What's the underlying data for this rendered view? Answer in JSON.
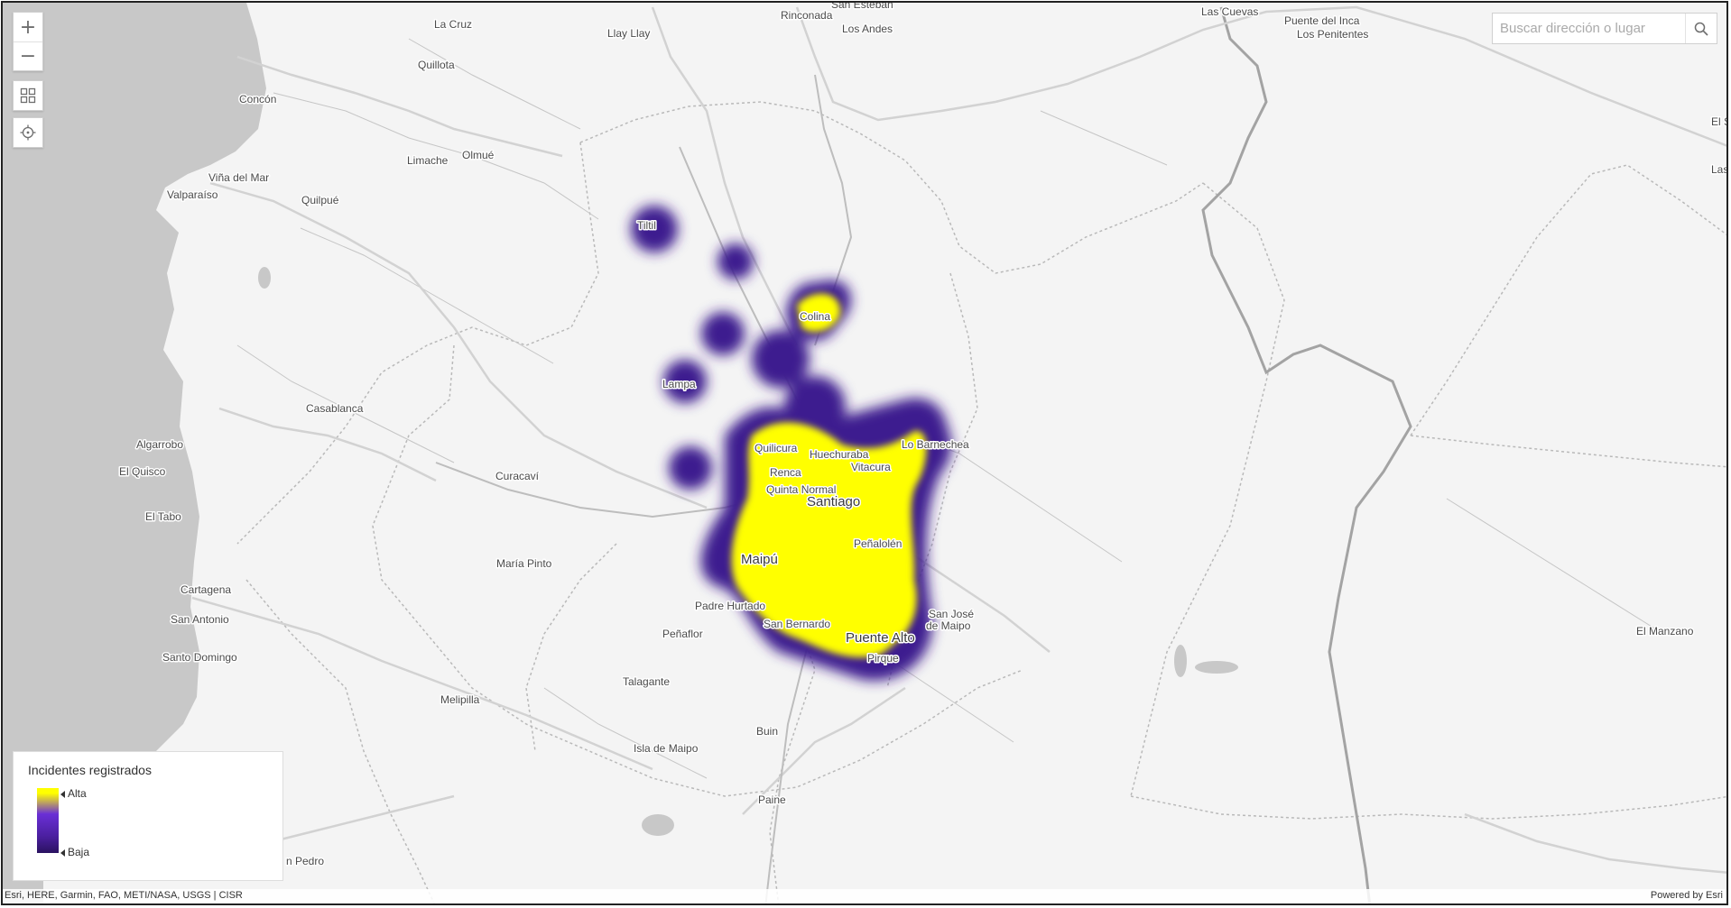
{
  "controls": {
    "zoom_in": "+",
    "zoom_out": "−"
  },
  "search": {
    "placeholder": "Buscar dirección o lugar"
  },
  "legend": {
    "title": "Incidentes registrados",
    "high_label": "Alta",
    "low_label": "Baja"
  },
  "attribution": {
    "left": "Esri, HERE, Garmin, FAO, METI/NASA, USGS | CISR",
    "right": "Powered by Esri"
  },
  "colors": {
    "heat_high": "#ffff00",
    "heat_mid": "#6a2fd6",
    "heat_low": "#3e1a8f",
    "sea": "#c8c8c8",
    "land": "#f4f4f4"
  },
  "places": {
    "la_cruz": "La Cruz",
    "llay_llay": "Llay Llay",
    "rinconada": "Rinconada",
    "san_esteban": "San Esteban",
    "los_andes": "Los Andes",
    "las_cuevas": "Las Cuevas",
    "puente_del_inca": "Puente del Inca",
    "los_penitentes": "Los Penitentes",
    "quillota": "Quillota",
    "concon": "Concón",
    "vina_del_mar": "Viña del Mar",
    "valparaiso": "Valparaíso",
    "limache": "Limache",
    "olmue": "Olmué",
    "quilpue": "Quilpué",
    "tiltil": "Tiltil",
    "colina": "Colina",
    "lampa": "Lampa",
    "casablanca": "Casablanca",
    "algarrobo": "Algarrobo",
    "el_quisco": "El Quisco",
    "el_tabo": "El Tabo",
    "curacavi": "Curacaví",
    "quilicura": "Quilicura",
    "huechuraba": "Huechuraba",
    "lo_barnechea": "Lo Barnechea",
    "vitacura": "Vitacura",
    "renca": "Renca",
    "quinta_normal": "Quinta Normal",
    "santiago": "Santiago",
    "penalolen": "Peñalolén",
    "maipu": "Maipú",
    "maria_pinto": "María Pinto",
    "cartagena": "Cartagena",
    "san_antonio": "San Antonio",
    "santo_domingo": "Santo Domingo",
    "padre_hurtado": "Padre Hurtado",
    "san_bernardo": "San Bernardo",
    "penaflor": "Peñaflor",
    "puente_alto": "Puente Alto",
    "san_jose_1": "San José",
    "san_jose_2": "de Maipo",
    "pirque": "Pirque",
    "talagante": "Talagante",
    "melipilla": "Melipilla",
    "buin": "Buin",
    "isla_de_maipo": "Isla de Maipo",
    "paine": "Paine",
    "el_manzano": "El Manzano",
    "san_pedro": "n Pedro",
    "edge_1": "El S",
    "edge_2": "Las"
  }
}
